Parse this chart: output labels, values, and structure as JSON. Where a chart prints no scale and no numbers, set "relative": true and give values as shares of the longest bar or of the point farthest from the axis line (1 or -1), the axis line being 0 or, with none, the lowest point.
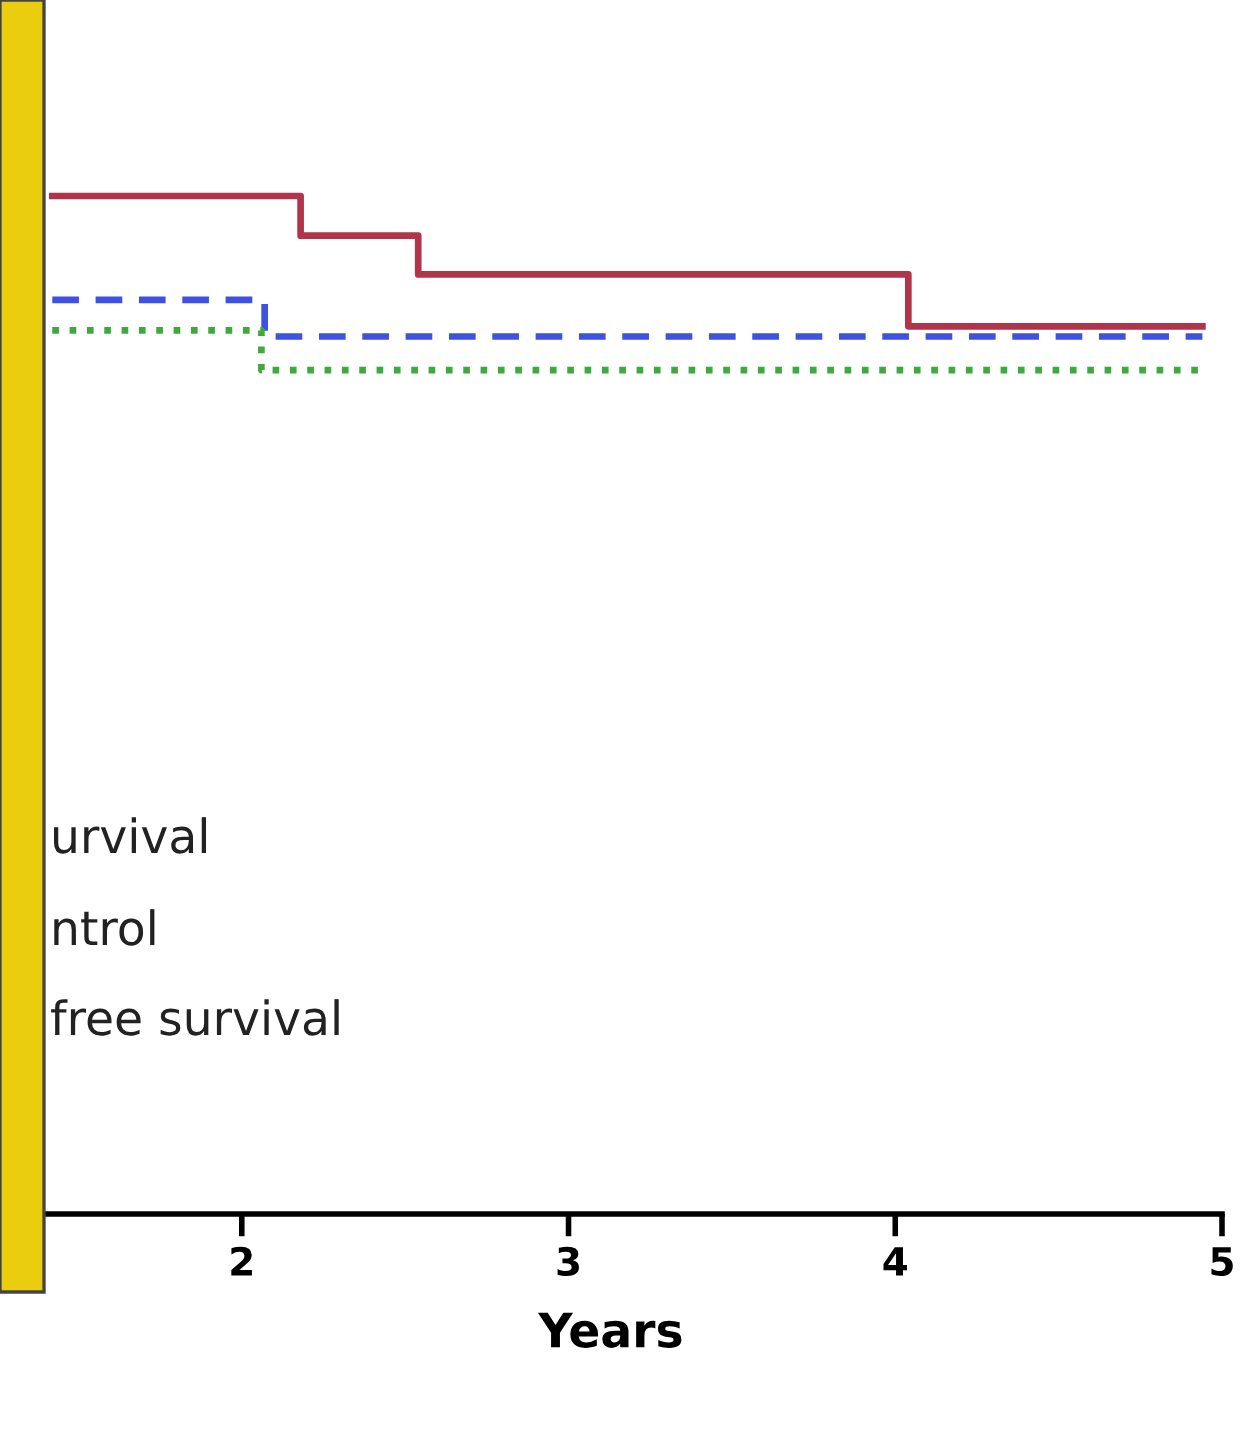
{
  "chart_data": {
    "type": "step",
    "relative": true,
    "xlabel": "Years",
    "xlim": [
      1.26,
      5
    ],
    "xticks": [
      2,
      3,
      4,
      5
    ],
    "grid": false,
    "legend": false,
    "marker": "none",
    "series": [
      {
        "color": "#b0344a",
        "line_style": "solid",
        "x": [
          1.42,
          2.18,
          2.54,
          4.04,
          4.94
        ],
        "values": [
          1,
          0.961,
          0.923,
          0.872,
          0.872
        ]
      },
      {
        "color": "#3f51e0",
        "line_style": "dashed",
        "x": [
          1.42,
          2.07,
          4.94
        ],
        "values": [
          0.898,
          0.862,
          0.862
        ]
      },
      {
        "color": "#3daa3d",
        "line_style": "dotted",
        "x": [
          1.42,
          2.06,
          4.94
        ],
        "values": [
          0.868,
          0.829,
          0.829
        ]
      }
    ],
    "annotations": [
      "urvival",
      "ntrol",
      "free survival"
    ]
  }
}
